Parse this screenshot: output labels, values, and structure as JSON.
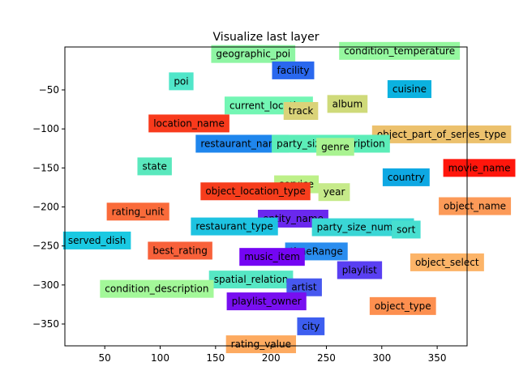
{
  "chart_data": {
    "type": "scatter",
    "title": "Visualize last layer",
    "xlabel": "",
    "ylabel": "",
    "xlim": [
      14,
      377
    ],
    "ylim": [
      -378,
      5
    ],
    "xticks": [
      50,
      100,
      150,
      200,
      250,
      300,
      350
    ],
    "yticks": [
      -50,
      -100,
      -150,
      -200,
      -250,
      -300,
      -350
    ],
    "grid": false,
    "legend": "none",
    "points": [
      {
        "label": "condition_temperature",
        "x": 316,
        "y": 0,
        "color": "#95f89f"
      },
      {
        "label": "geographic_poi",
        "x": 184,
        "y": -4,
        "color": "#8ef5a3"
      },
      {
        "label": "facility",
        "x": 220,
        "y": -25,
        "color": "#2a68ee"
      },
      {
        "label": "poi",
        "x": 119,
        "y": -39,
        "color": "#50e6c9"
      },
      {
        "label": "cuisine",
        "x": 325,
        "y": -49,
        "color": "#0bb2e0"
      },
      {
        "label": "current_location",
        "x": 198,
        "y": -70,
        "color": "#73f6b4"
      },
      {
        "label": "album",
        "x": 269,
        "y": -68,
        "color": "#cfda7a"
      },
      {
        "label": "track",
        "x": 227,
        "y": -77,
        "color": "#dad379"
      },
      {
        "label": "location_name",
        "x": 126,
        "y": -93,
        "color": "#f83a1c"
      },
      {
        "label": "object_part_of_series_type",
        "x": 354,
        "y": -107,
        "color": "#ecc16d"
      },
      {
        "label": "restaurant_name",
        "x": 174,
        "y": -119,
        "color": "#1f86ed"
      },
      {
        "label": "party_size_description",
        "x": 254,
        "y": -119,
        "color": "#5cedb8"
      },
      {
        "label": "genre",
        "x": 258,
        "y": -123,
        "color": "#a9f391"
      },
      {
        "label": "state",
        "x": 95,
        "y": -148,
        "color": "#5ae8bd"
      },
      {
        "label": "movie_name",
        "x": 388,
        "y": -150,
        "color": "#ff160c"
      },
      {
        "label": "country",
        "x": 322,
        "y": -162,
        "color": "#0ea8e3"
      },
      {
        "label": "service",
        "x": 223,
        "y": -171,
        "color": "#bdf088"
      },
      {
        "label": "object_location_type",
        "x": 186,
        "y": -180,
        "color": "#f63d1c"
      },
      {
        "label": "year",
        "x": 257,
        "y": -181,
        "color": "#c6ea8a"
      },
      {
        "label": "object_name",
        "x": 384,
        "y": -199,
        "color": "#fc9a58"
      },
      {
        "label": "rating_unit",
        "x": 80,
        "y": -206,
        "color": "#fa6b3a"
      },
      {
        "label": "entity_name",
        "x": 220,
        "y": -215,
        "color": "#6a28ee"
      },
      {
        "label": "restaurant_type",
        "x": 167,
        "y": -225,
        "color": "#1ec3e1"
      },
      {
        "label": "party_size_number",
        "x": 283,
        "y": -226,
        "color": "#3ad6d5"
      },
      {
        "label": "sort",
        "x": 322,
        "y": -229,
        "color": "#47dfd0"
      },
      {
        "label": "served_dish",
        "x": 43,
        "y": -243,
        "color": "#1ac9e2"
      },
      {
        "label": "best_rating",
        "x": 118,
        "y": -256,
        "color": "#f8613a"
      },
      {
        "label": "timeRange",
        "x": 241,
        "y": -257,
        "color": "#2a8def"
      },
      {
        "label": "music_item",
        "x": 201,
        "y": -264,
        "color": "#7405f3"
      },
      {
        "label": "object_select",
        "x": 359,
        "y": -271,
        "color": "#fcb468"
      },
      {
        "label": "playlist",
        "x": 280,
        "y": -281,
        "color": "#593ff2"
      },
      {
        "label": "spatial_relation",
        "x": 182,
        "y": -293,
        "color": "#56e7c4"
      },
      {
        "label": "condition_description",
        "x": 97,
        "y": -305,
        "color": "#a3f899"
      },
      {
        "label": "artist",
        "x": 230,
        "y": -303,
        "color": "#4758ef"
      },
      {
        "label": "playlist_owner",
        "x": 196,
        "y": -321,
        "color": "#780ff0"
      },
      {
        "label": "object_type",
        "x": 319,
        "y": -327,
        "color": "#fd8f4f"
      },
      {
        "label": "city",
        "x": 236,
        "y": -353,
        "color": "#3d5ef0"
      },
      {
        "label": "rating_value",
        "x": 191,
        "y": -376,
        "color": "#fdaa60"
      }
    ]
  }
}
